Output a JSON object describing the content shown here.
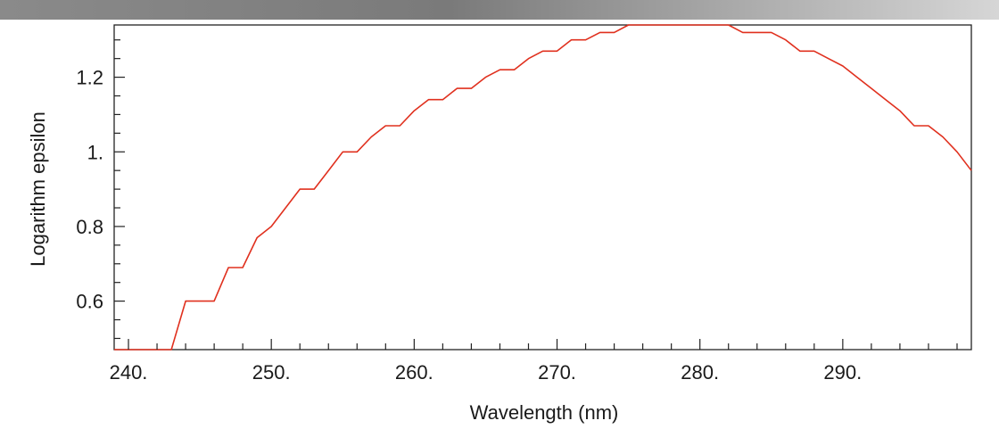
{
  "chart_data": {
    "type": "line",
    "title": "",
    "xlabel": "Wavelength (nm)",
    "ylabel": "Logarithm epsilon",
    "xlim": [
      239,
      299
    ],
    "ylim": [
      0.47,
      1.34
    ],
    "grid": false,
    "x_ticks": [
      240,
      250,
      260,
      270,
      280,
      290
    ],
    "x_tick_labels": [
      "240.",
      "250.",
      "260.",
      "270.",
      "280.",
      "290."
    ],
    "y_ticks": [
      0.6,
      0.8,
      1.0,
      1.2
    ],
    "y_tick_labels": [
      "0.6",
      "0.8",
      "1.",
      "1.2"
    ],
    "line_color": "#e0301e",
    "series": [
      {
        "x": [
          239,
          243,
          244,
          246,
          247,
          248,
          249,
          250,
          251,
          252,
          253,
          254,
          255,
          256,
          257,
          258,
          259,
          260,
          261,
          262,
          263,
          264,
          265,
          266,
          267,
          268,
          269,
          270,
          271,
          272,
          273,
          274,
          275,
          276,
          277,
          278,
          279,
          280,
          281,
          282,
          283,
          284,
          285,
          286,
          287,
          288,
          289,
          290,
          291,
          292,
          293,
          294,
          295,
          296,
          297,
          298,
          299
        ],
        "y": [
          0.47,
          0.47,
          0.6,
          0.6,
          0.69,
          0.69,
          0.77,
          0.8,
          0.85,
          0.9,
          0.9,
          0.95,
          1.0,
          1.0,
          1.04,
          1.07,
          1.07,
          1.11,
          1.14,
          1.14,
          1.17,
          1.17,
          1.2,
          1.22,
          1.22,
          1.25,
          1.27,
          1.27,
          1.3,
          1.3,
          1.32,
          1.32,
          1.34,
          1.34,
          1.34,
          1.34,
          1.34,
          1.34,
          1.34,
          1.34,
          1.32,
          1.32,
          1.32,
          1.3,
          1.27,
          1.27,
          1.25,
          1.23,
          1.2,
          1.17,
          1.14,
          1.11,
          1.07,
          1.07,
          1.04,
          1.0,
          0.95
        ]
      }
    ]
  }
}
